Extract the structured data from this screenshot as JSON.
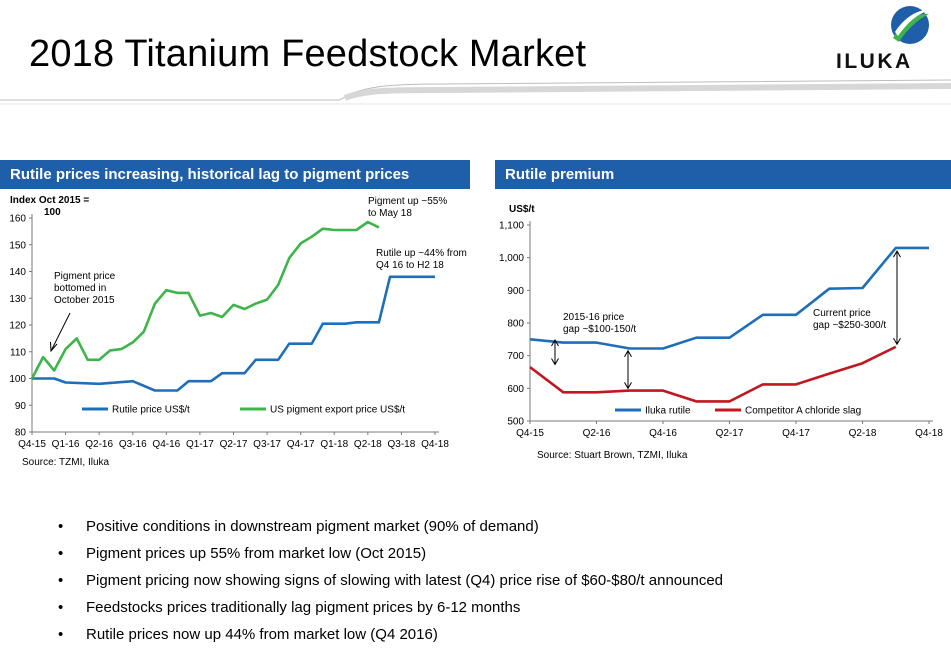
{
  "page": {
    "title": "2018 Titanium Feedstock Market",
    "logo_text": "ILUKA",
    "brand_color": "#1f5fa9"
  },
  "left_panel": {
    "header": "Rutile prices increasing, historical lag to pigment prices",
    "source": "Source: TZMI, Iluka"
  },
  "right_panel": {
    "header": "Rutile premium",
    "source": "Source: Stuart Brown, TZMI, Iluka"
  },
  "bullets": [
    "Positive conditions in downstream pigment market (90% of demand)",
    "Pigment prices up 55% from market low (Oct 2015)",
    "Pigment pricing now showing signs of slowing with latest (Q4) price rise of $60-$80/t announced",
    "Feedstocks prices traditionally lag pigment prices by 6-12 months",
    "Rutile prices now up 44% from market low (Q4 2016)"
  ],
  "chart_data": [
    {
      "type": "line",
      "ylabel": "Index Oct 2015 = 100",
      "ylim": [
        80,
        160
      ],
      "yticks": [
        80,
        90,
        100,
        110,
        120,
        130,
        140,
        150,
        160
      ],
      "categories": [
        "Q4-15",
        "Q1-16",
        "Q2-16",
        "Q3-16",
        "Q4-16",
        "Q1-17",
        "Q2-17",
        "Q3-17",
        "Q4-17",
        "Q1-18",
        "Q2-18",
        "Q3-18",
        "Q4-18"
      ],
      "xlim": [
        0,
        12
      ],
      "grid": false,
      "legend": "bottom",
      "series": [
        {
          "name": "Rutile price US$/t",
          "color": "#1f6fb8",
          "points": [
            [
              0,
              100
            ],
            [
              0.66,
              100
            ],
            [
              1,
              98.5
            ],
            [
              2,
              98
            ],
            [
              3,
              99
            ],
            [
              3.66,
              95.5
            ],
            [
              4.33,
              95.5
            ],
            [
              4.66,
              99
            ],
            [
              5.33,
              99
            ],
            [
              5.66,
              102
            ],
            [
              6.33,
              102
            ],
            [
              6.66,
              107
            ],
            [
              7.33,
              107
            ],
            [
              7.66,
              113
            ],
            [
              8.33,
              113
            ],
            [
              8.66,
              120.5
            ],
            [
              9.33,
              120.5
            ],
            [
              9.66,
              121
            ],
            [
              10.33,
              121
            ],
            [
              10.66,
              138
            ],
            [
              12,
              138
            ]
          ]
        },
        {
          "name": "US pigment export price US$/t",
          "color": "#3db54a",
          "points": [
            [
              0,
              100
            ],
            [
              0.33,
              108
            ],
            [
              0.66,
              103
            ],
            [
              1,
              111
            ],
            [
              1.33,
              115
            ],
            [
              1.66,
              107
            ],
            [
              2,
              107
            ],
            [
              2.33,
              110.5
            ],
            [
              2.66,
              111
            ],
            [
              3,
              113.5
            ],
            [
              3.33,
              117.5
            ],
            [
              3.66,
              128
            ],
            [
              4,
              133
            ],
            [
              4.33,
              132
            ],
            [
              4.66,
              132
            ],
            [
              5,
              123.5
            ],
            [
              5.33,
              124.5
            ],
            [
              5.66,
              123
            ],
            [
              6,
              127.5
            ],
            [
              6.33,
              126
            ],
            [
              6.66,
              128
            ],
            [
              7,
              129.5
            ],
            [
              7.33,
              135
            ],
            [
              7.66,
              145
            ],
            [
              8,
              150.5
            ],
            [
              8.33,
              153
            ],
            [
              8.66,
              156
            ],
            [
              9,
              155.5
            ],
            [
              9.33,
              155.5
            ],
            [
              9.66,
              155.5
            ],
            [
              10,
              158.5
            ],
            [
              10.33,
              156.5
            ]
          ]
        }
      ],
      "annotations": [
        {
          "text": [
            "Pigment up ~55%",
            "to May 18"
          ]
        },
        {
          "text": [
            "Rutile up ~44% from",
            "Q4 16 to H2 18"
          ]
        },
        {
          "text": [
            "Pigment price",
            "bottomed in",
            "October 2015"
          ]
        }
      ]
    },
    {
      "type": "line",
      "ylabel": "US$/t",
      "ylim": [
        500,
        1100
      ],
      "yticks": [
        500,
        600,
        700,
        800,
        900,
        1000,
        1100
      ],
      "ytick_labels": [
        "500",
        "600",
        "700",
        "800",
        "900",
        "1,000",
        "1,100"
      ],
      "categories": [
        "Q4-15",
        "Q2-16",
        "Q4-16",
        "Q2-17",
        "Q4-17",
        "Q2-18",
        "Q4-18"
      ],
      "xlim": [
        0,
        12
      ],
      "grid": false,
      "legend": "bottom",
      "series": [
        {
          "name": "Iluka rutile",
          "color": "#1f6fb8",
          "points": [
            [
              0,
              750
            ],
            [
              1,
              740
            ],
            [
              2,
              740
            ],
            [
              3,
              722
            ],
            [
              4,
              722
            ],
            [
              5,
              755
            ],
            [
              6,
              755
            ],
            [
              7,
              825
            ],
            [
              8,
              825
            ],
            [
              9,
              905
            ],
            [
              10,
              907
            ],
            [
              11,
              1030
            ],
            [
              12,
              1030
            ]
          ]
        },
        {
          "name": "Competitor A chloride slag",
          "color": "#c0181f",
          "points": [
            [
              0,
              665
            ],
            [
              1,
              588
            ],
            [
              2,
              588
            ],
            [
              3,
              593
            ],
            [
              4,
              593
            ],
            [
              5,
              560
            ],
            [
              6,
              560
            ],
            [
              7,
              612
            ],
            [
              8,
              612
            ],
            [
              9,
              645
            ],
            [
              10,
              677
            ],
            [
              11,
              727
            ]
          ]
        }
      ],
      "annotations": [
        {
          "text": [
            "2015-16 price",
            "gap ~$100-150/t"
          ]
        },
        {
          "text": [
            "Current price",
            "gap ~$250-300/t"
          ]
        }
      ]
    }
  ]
}
